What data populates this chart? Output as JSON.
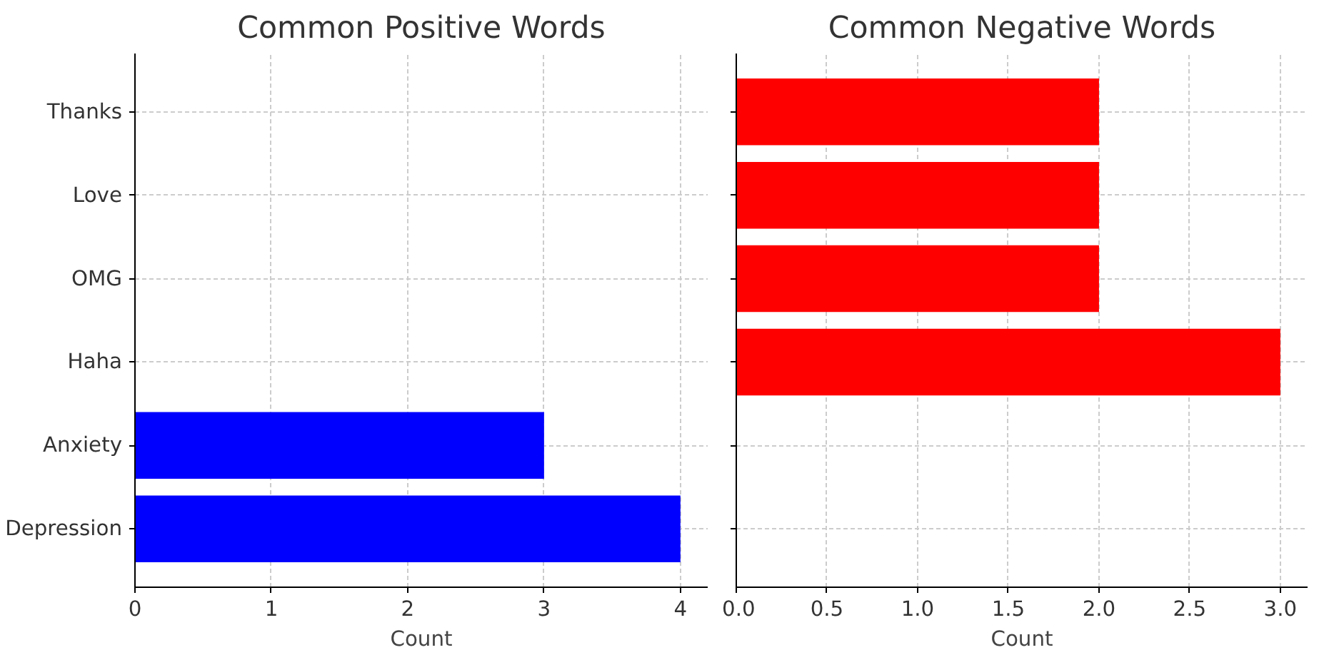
{
  "chart_data": [
    {
      "type": "bar",
      "orientation": "horizontal",
      "title": "Common Positive Words",
      "xlabel": "Count",
      "categories": [
        "Thanks",
        "Love",
        "OMG",
        "Haha",
        "Anxiety",
        "Depression"
      ],
      "series": [
        {
          "color": "#0000ff",
          "values": [
            null,
            null,
            null,
            null,
            3,
            4
          ]
        }
      ],
      "xlim": [
        0,
        4.2
      ],
      "xticks": [
        0,
        1,
        2,
        3,
        4
      ],
      "grid": true
    },
    {
      "type": "bar",
      "orientation": "horizontal",
      "title": "Common Negative Words",
      "xlabel": "Count",
      "categories": [
        null,
        null,
        null,
        null,
        null,
        null
      ],
      "series": [
        {
          "color": "#ff0000",
          "values": [
            2,
            2,
            2,
            3,
            null,
            null
          ]
        }
      ],
      "xlim": [
        0,
        3.15
      ],
      "xticks": [
        {
          "value": 0,
          "label": "0.0"
        },
        {
          "value": 0.5,
          "label": "0.5"
        },
        {
          "value": 1,
          "label": "1.0"
        },
        {
          "value": 1.5,
          "label": "1.5"
        },
        {
          "value": 2,
          "label": "2.0"
        },
        {
          "value": 2.5,
          "label": "2.5"
        },
        {
          "value": 3,
          "label": "3.0"
        }
      ],
      "grid": true
    }
  ]
}
